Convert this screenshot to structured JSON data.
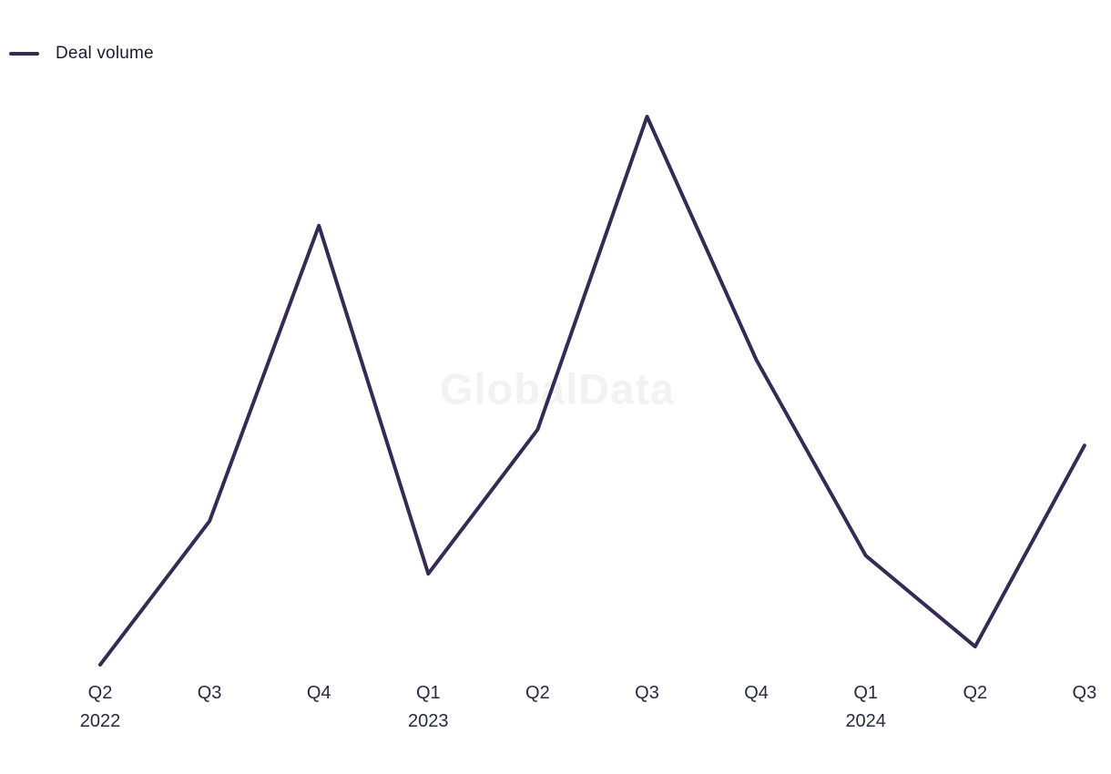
{
  "legend": {
    "label": "Deal volume"
  },
  "watermark": {
    "text": "GlobalData"
  },
  "colors": {
    "series_line": "#362a55",
    "axis_label_text": "#262b3f",
    "legend_text": "#1c1c30",
    "watermark_text": "#f2f2f2",
    "background": "#ffffff"
  },
  "chart_data": {
    "type": "line",
    "title": "",
    "xlabel": "",
    "ylabel": "",
    "categories": [
      "Q2 2022",
      "Q3 2022",
      "Q4 2022",
      "Q1 2023",
      "Q2 2023",
      "Q3 2023",
      "Q4 2023",
      "Q1 2024",
      "Q2 2024",
      "Q3 2024"
    ],
    "x_tick_labels": [
      {
        "quarter": "Q2",
        "year": "2022"
      },
      {
        "quarter": "Q3",
        "year": ""
      },
      {
        "quarter": "Q4",
        "year": ""
      },
      {
        "quarter": "Q1",
        "year": "2023"
      },
      {
        "quarter": "Q2",
        "year": ""
      },
      {
        "quarter": "Q3",
        "year": ""
      },
      {
        "quarter": "Q4",
        "year": ""
      },
      {
        "quarter": "Q1",
        "year": "2024"
      },
      {
        "quarter": "Q2",
        "year": ""
      },
      {
        "quarter": "Q3",
        "year": ""
      }
    ],
    "series": [
      {
        "name": "Deal volume",
        "color": "#362a55",
        "values": [
          0,
          26.2,
          80.1,
          16.6,
          42.9,
          100,
          55.6,
          19.9,
          3.3,
          40
        ]
      }
    ],
    "value_scale": "relative 0-100 (y-axis not labeled in source; 0 = minimum at Q2 2022, 100 = maximum at Q3 2023)",
    "ylim": [
      0,
      100
    ],
    "y_axis_visible": false,
    "gridlines": false,
    "markers": false,
    "legend_position": "top-left",
    "watermark": "GlobalData"
  }
}
